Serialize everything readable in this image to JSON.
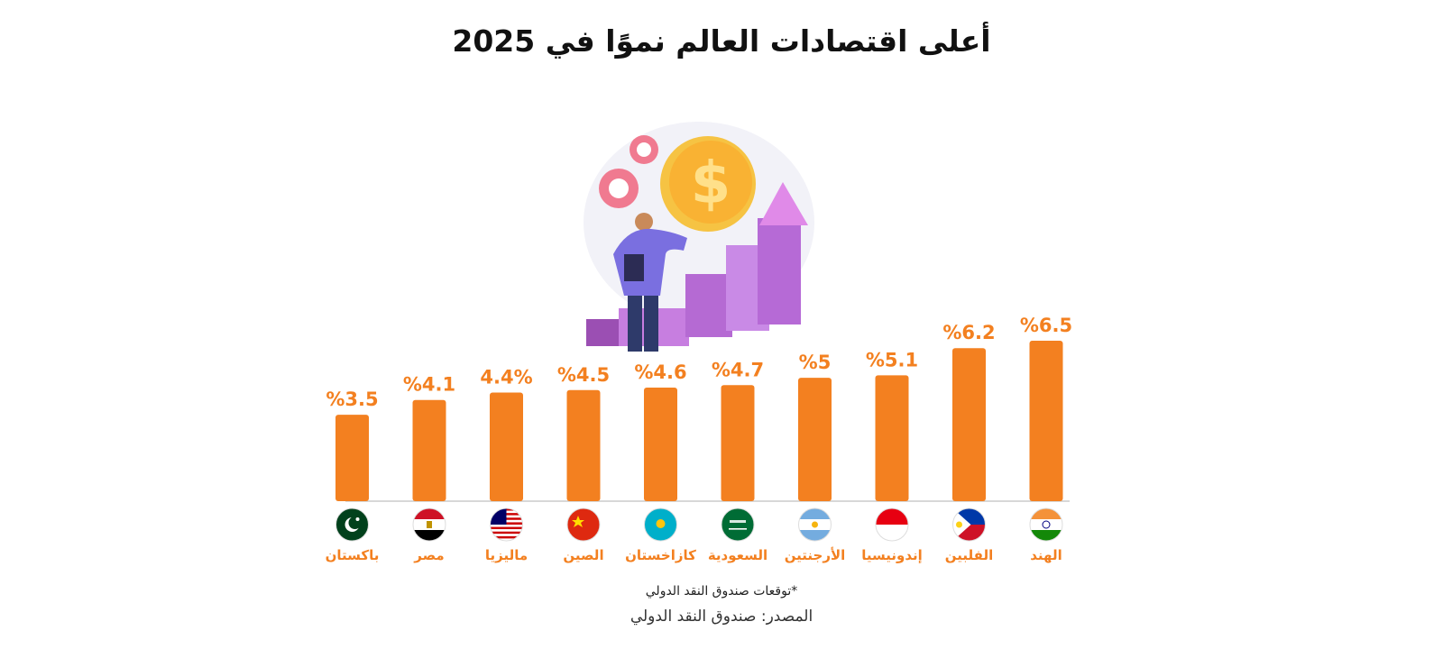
{
  "title": "أعلى اقتصادات العالم نموًا في 2025",
  "note": "*توقعات صندوق النقد الدولي",
  "source": "المصدر: صندوق النقد الدولي",
  "colors": {
    "bar": "#f38020",
    "label": "#f38020",
    "baseline": "#cccccc",
    "country": "#f38020"
  },
  "illustration": {
    "description_icon": "economic-growth-illustration-icon"
  },
  "chart_data": {
    "type": "bar",
    "title": "أعلى اقتصادات العالم نموًا في 2025",
    "categories": [
      "الهند",
      "الفلبين",
      "إندونيسيا",
      "الأرجنتين",
      "السعودية",
      "كازاخستان",
      "الصين",
      "ماليزيا",
      "مصر",
      "باكستان"
    ],
    "values": [
      6.5,
      6.2,
      5.1,
      5,
      4.7,
      4.6,
      4.5,
      4.4,
      4.1,
      3.5
    ],
    "value_labels": [
      "%6.5",
      "%6.2",
      "%5.1",
      "%5",
      "%4.7",
      "%4.6",
      "%4.5",
      "4.4%",
      "%4.1",
      "%3.5"
    ],
    "flag_icons": [
      "india-flag-icon",
      "philippines-flag-icon",
      "indonesia-flag-icon",
      "argentina-flag-icon",
      "saudi-arabia-flag-icon",
      "kazakhstan-flag-icon",
      "china-flag-icon",
      "malaysia-flag-icon",
      "egypt-flag-icon",
      "pakistan-flag-icon"
    ],
    "ylim": [
      0,
      6.5
    ],
    "xlabel": "",
    "ylabel": "",
    "grid": false,
    "order": "right-to-left"
  }
}
